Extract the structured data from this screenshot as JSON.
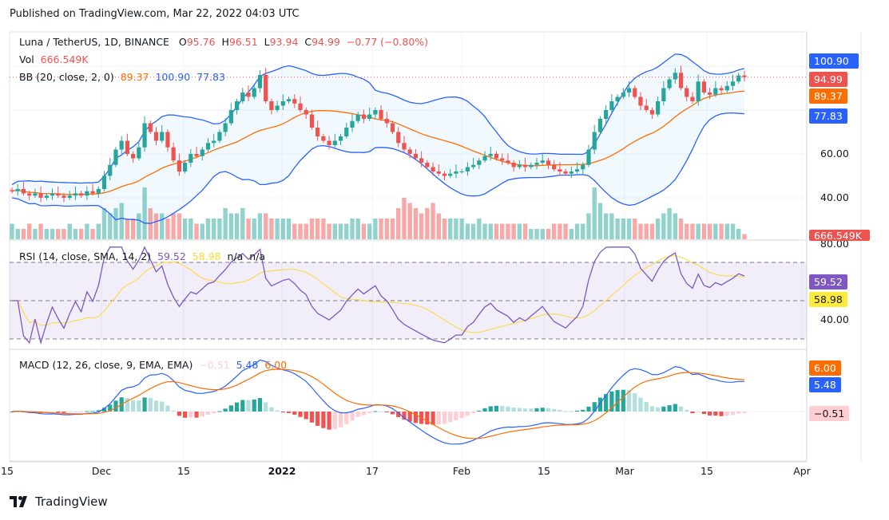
{
  "header": {
    "published": "Published on TradingView.com, Mar 22, 2022 04:03 UTC"
  },
  "legend": {
    "symbol": "Luna / TetherUS, 1D, BINANCE",
    "open_label": "O",
    "open": "95.76",
    "high_label": "H",
    "high": "96.51",
    "low_label": "L",
    "low": "93.94",
    "close_label": "C",
    "close": "94.99",
    "change": "−0.77 (−0.80%)",
    "vol_label": "Vol",
    "vol": "666.549K",
    "bb_label": "BB (20, close, 2, 0)",
    "bb_basis": "89.37",
    "bb_upper": "100.90",
    "bb_lower": "77.83",
    "rsi_label": "RSI (14, close, SMA, 14, 2)",
    "rsi": "59.52",
    "rsi_sma": "58.98",
    "rsi_na1": "n/a",
    "rsi_na2": "n/a",
    "macd_label": "MACD (12, 26, close, 9, EMA, EMA)",
    "macd_hist": "−0.51",
    "macd": "5.48",
    "macd_signal": "6.00"
  },
  "price_axis": {
    "ticks": [
      "60.00",
      "40.00"
    ],
    "badges": {
      "bb_upper": "100.90",
      "last": "94.99",
      "bb_basis": "89.37",
      "bb_lower": "77.83",
      "vol": "666.549K"
    }
  },
  "rsi_axis": {
    "ticks": [
      "80.00",
      "40.00"
    ],
    "badges": {
      "rsi": "59.52",
      "rsi_sma": "58.98"
    }
  },
  "macd_axis": {
    "badges": {
      "signal": "6.00",
      "macd": "5.48",
      "hist": "−0.51"
    }
  },
  "time_axis": {
    "labels": [
      "15",
      "Dec",
      "15",
      "2022",
      "17",
      "Feb",
      "15",
      "Mar",
      "15",
      "Apr"
    ]
  },
  "footer": {
    "brand": "TradingView"
  },
  "colors": {
    "up": "#26a69a",
    "down": "#ef5350",
    "bb_band": "#2962ff",
    "bb_basis": "#ff6d00",
    "rsi": "#7e57c2",
    "rsi_sma": "#fdd835",
    "macd": "#2962ff",
    "signal": "#ff6d00"
  },
  "chart_data": {
    "type": "candlestick",
    "start_date": "2021-11-15",
    "end_date": "2022-03-22",
    "interval": "1D",
    "close": [
      43,
      44,
      42,
      41,
      42,
      40,
      41,
      42,
      41,
      40,
      41,
      42,
      41,
      43,
      42,
      44,
      50,
      55,
      62,
      66,
      60,
      58,
      63,
      74,
      70,
      66,
      70,
      63,
      57,
      52,
      56,
      60,
      59,
      62,
      65,
      66,
      70,
      74,
      80,
      84,
      88,
      86,
      90,
      96,
      84,
      80,
      82,
      84,
      85,
      83,
      80,
      78,
      72,
      68,
      66,
      64,
      66,
      68,
      72,
      75,
      78,
      76,
      78,
      80,
      76,
      74,
      70,
      65,
      62,
      60,
      58,
      56,
      54,
      52,
      51,
      50,
      51,
      52,
      52,
      54,
      55,
      57,
      59,
      60,
      58,
      57,
      56,
      54,
      55,
      54,
      55,
      56,
      57,
      55,
      53,
      52,
      51,
      52,
      53,
      55,
      62,
      70,
      76,
      80,
      84,
      86,
      88,
      90,
      86,
      82,
      80,
      78,
      84,
      90,
      94,
      97,
      90,
      86,
      84,
      93,
      88,
      87,
      90,
      89,
      91,
      93,
      95.76,
      94.99
    ],
    "volume_relative": [
      3,
      2,
      2,
      3,
      2,
      3,
      2,
      2,
      2,
      2,
      3,
      2,
      2,
      3,
      2,
      3,
      6,
      5,
      6,
      7,
      4,
      4,
      5,
      10,
      6,
      5,
      5,
      4,
      5,
      5,
      4,
      4,
      3,
      3,
      4,
      4,
      4,
      6,
      5,
      5,
      6,
      4,
      4,
      5,
      5,
      4,
      4,
      4,
      4,
      3,
      3,
      3,
      4,
      4,
      4,
      3,
      3,
      3,
      3,
      4,
      4,
      3,
      3,
      4,
      4,
      4,
      4,
      6,
      8,
      7,
      6,
      5,
      6,
      7,
      5,
      4,
      4,
      4,
      4,
      3,
      3,
      4,
      3,
      3,
      3,
      3,
      3,
      3,
      3,
      3,
      2,
      2,
      2,
      2,
      3,
      3,
      3,
      2,
      3,
      3,
      5,
      10,
      7,
      5,
      5,
      4,
      4,
      4,
      4,
      3,
      3,
      3,
      4,
      5,
      6,
      5,
      4,
      3,
      3,
      3,
      3,
      3,
      3,
      3,
      3,
      3,
      2,
      1
    ],
    "price_axis": [
      40,
      100
    ],
    "rsi_bands": [
      30,
      50,
      70
    ]
  }
}
